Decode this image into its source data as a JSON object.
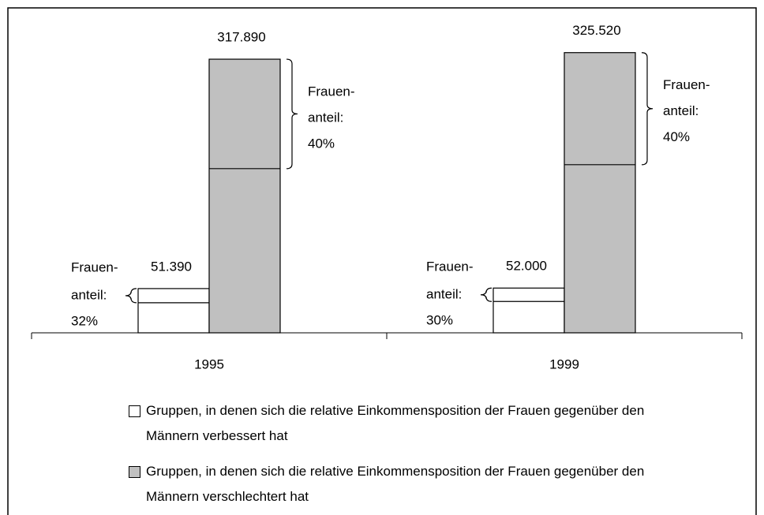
{
  "chart_data": {
    "type": "bar",
    "categories": [
      "1995",
      "1999"
    ],
    "ylim": [
      0,
      350000
    ],
    "share_caption": [
      "Frauen-",
      "anteil:"
    ],
    "series": [
      {
        "name": "Gruppen, in denen sich die relative Einkommensposition der Frauen gegenüber den Männern verbessert hat",
        "color": "#ffffff",
        "values": [
          51390,
          52000
        ],
        "value_labels": [
          "51.390",
          "52.000"
        ],
        "female_share": [
          32,
          30
        ],
        "female_share_labels": [
          "32%",
          "30%"
        ]
      },
      {
        "name": "Gruppen, in denen sich die relative Einkommensposition der Frauen gegenüber den Männern verschlechtert hat",
        "color": "#c0c0c0",
        "values": [
          317890,
          325520
        ],
        "value_labels": [
          "317.890",
          "325.520"
        ],
        "female_share": [
          40,
          40
        ],
        "female_share_labels": [
          "40%",
          "40%"
        ]
      }
    ]
  }
}
